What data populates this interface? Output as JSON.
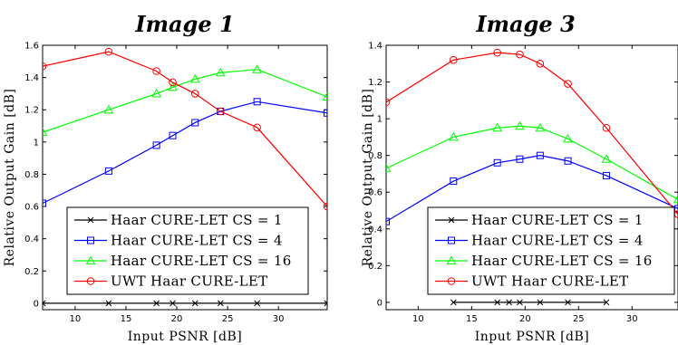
{
  "chart_data": [
    {
      "type": "line",
      "title": "Image 1",
      "xlabel": "Input PSNR [dB]",
      "ylabel": "Relative Output Gain [dB]",
      "xlim": [
        6.8,
        34.8
      ],
      "ylim": [
        -0.04,
        1.6
      ],
      "xticks": [
        10,
        15,
        20,
        25,
        30
      ],
      "yticks": [
        0,
        0.2,
        0.4,
        0.6,
        0.8,
        1,
        1.2,
        1.4,
        1.6
      ],
      "ytick_labels": [
        "0",
        "0.2",
        "0.4",
        "0.6",
        "0.8",
        "1",
        "1.2",
        "1.4",
        "1.6"
      ],
      "legend_position": "bottom-center",
      "series": [
        {
          "name": "Haar CURE-LET CS = 1",
          "color": "#000000",
          "marker": "x",
          "x": [
            6.8,
            13.3,
            18.0,
            19.6,
            21.8,
            24.3,
            27.9,
            34.8
          ],
          "y": [
            0,
            0,
            0,
            0,
            0,
            0,
            0,
            0
          ]
        },
        {
          "name": "Haar CURE-LET CS = 4",
          "color": "#0000ff",
          "marker": "square",
          "x": [
            6.8,
            13.3,
            18.0,
            19.6,
            21.8,
            24.3,
            27.9,
            34.8
          ],
          "y": [
            0.62,
            0.82,
            0.98,
            1.04,
            1.12,
            1.19,
            1.25,
            1.18
          ]
        },
        {
          "name": "Haar CURE-LET CS = 16",
          "color": "#00ff00",
          "marker": "triangle",
          "x": [
            6.8,
            13.3,
            18.0,
            19.6,
            21.8,
            24.3,
            27.9,
            34.8
          ],
          "y": [
            1.06,
            1.2,
            1.3,
            1.34,
            1.39,
            1.43,
            1.45,
            1.28
          ]
        },
        {
          "name": "UWT Haar CURE-LET",
          "color": "#ff0000",
          "marker": "circle",
          "x": [
            6.8,
            13.3,
            18.0,
            19.6,
            21.8,
            24.3,
            27.9,
            34.8
          ],
          "y": [
            1.47,
            1.56,
            1.44,
            1.37,
            1.3,
            1.19,
            1.09,
            0.6
          ]
        }
      ]
    },
    {
      "type": "line",
      "title": "Image 3",
      "xlabel": "Input PSNR [dB]",
      "ylabel": "Relative Output Gain [dB]",
      "xlim": [
        7.0,
        34.3
      ],
      "ylim": [
        -0.04,
        1.4
      ],
      "xticks": [
        10,
        15,
        20,
        25,
        30
      ],
      "yticks": [
        0,
        0.2,
        0.4,
        0.6,
        0.8,
        1,
        1.2,
        1.4
      ],
      "ytick_labels": [
        "0",
        "0.2",
        "0.4",
        "0.6",
        "0.8",
        "1",
        "1.2",
        "1.4"
      ],
      "legend_position": "bottom-center",
      "series": [
        {
          "name": "Haar CURE-LET CS = 1",
          "color": "#000000",
          "marker": "x",
          "x": [
            13.3,
            17.4,
            18.5,
            19.5,
            21.4,
            24.0,
            27.6
          ],
          "y": [
            0,
            0,
            0,
            0,
            0,
            0,
            0
          ]
        },
        {
          "name": "Haar CURE-LET CS = 4",
          "color": "#0000ff",
          "marker": "square",
          "x": [
            7.0,
            13.3,
            17.4,
            19.5,
            21.4,
            24.0,
            27.6,
            34.3
          ],
          "y": [
            0.44,
            0.66,
            0.76,
            0.78,
            0.8,
            0.77,
            0.69,
            0.51
          ]
        },
        {
          "name": "Haar CURE-LET CS = 16",
          "color": "#00ff00",
          "marker": "triangle",
          "x": [
            7.0,
            13.3,
            17.4,
            19.5,
            21.4,
            24.0,
            27.6,
            34.3
          ],
          "y": [
            0.73,
            0.9,
            0.95,
            0.96,
            0.95,
            0.89,
            0.78,
            0.56
          ]
        },
        {
          "name": "UWT Haar CURE-LET",
          "color": "#ff0000",
          "marker": "circle",
          "x": [
            7.0,
            13.3,
            17.4,
            19.5,
            21.4,
            24.0,
            27.6,
            34.3
          ],
          "y": [
            1.09,
            1.32,
            1.36,
            1.35,
            1.3,
            1.19,
            0.95,
            0.48
          ]
        }
      ]
    }
  ]
}
